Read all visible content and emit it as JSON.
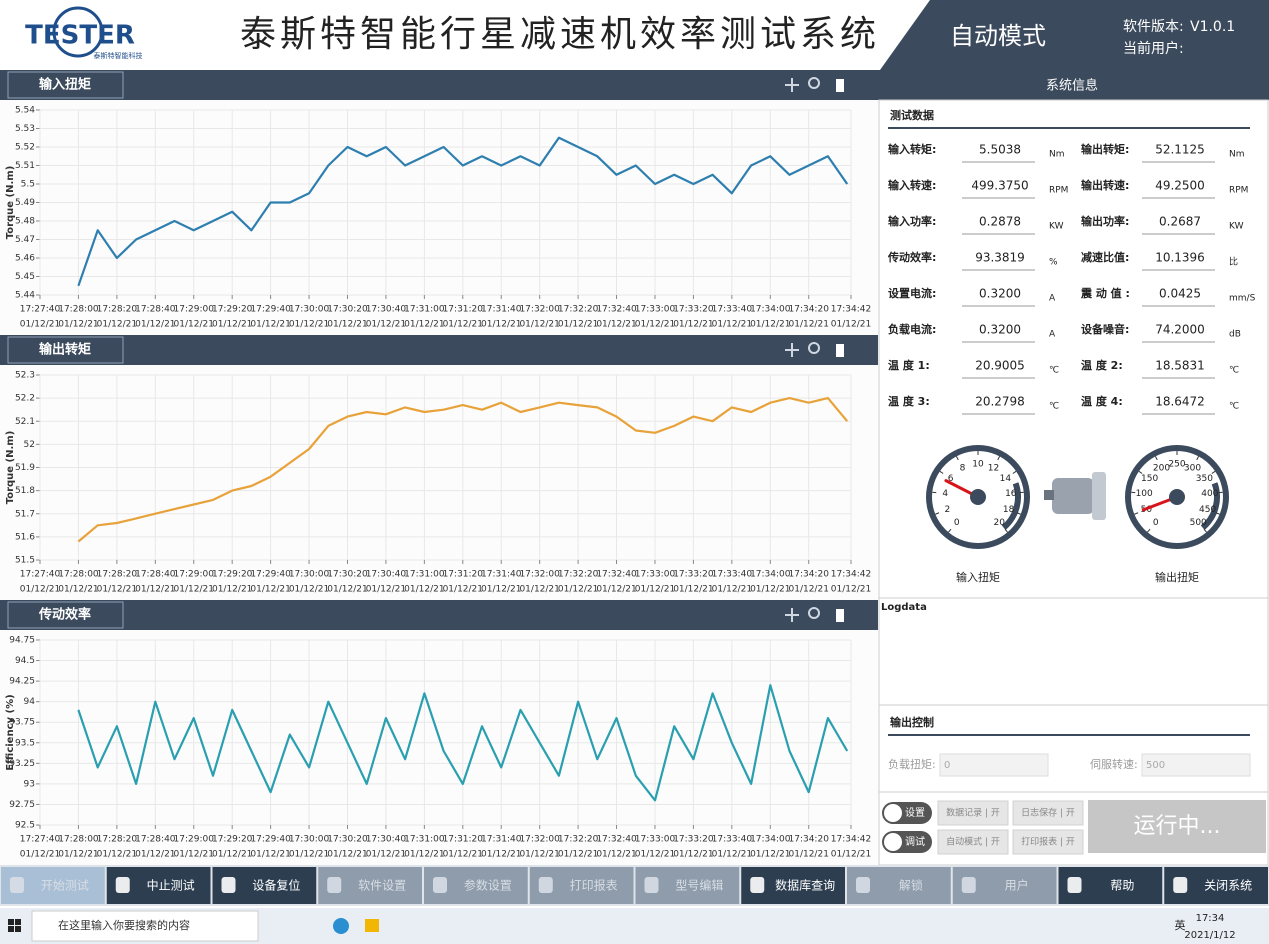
{
  "header": {
    "logo": "TESTER",
    "logo_sub": "泰斯特智能科技",
    "title": "泰斯特智能行星减速机效率测试系统",
    "mode": "自动模式",
    "version_label": "软件版本:",
    "version": "V1.0.1",
    "user_label": "当前用户:"
  },
  "chart_data": [
    {
      "type": "line",
      "title": "输入扭矩",
      "ylabel": "Torque (N.m)",
      "color": "#2e7fb0",
      "grid": true,
      "x": [
        "17:28:00",
        "17:28:10",
        "17:28:20",
        "17:28:30",
        "17:28:40",
        "17:28:50",
        "17:29:00",
        "17:29:10",
        "17:29:20",
        "17:29:30",
        "17:29:40",
        "17:29:50",
        "17:30:00",
        "17:30:10",
        "17:30:20",
        "17:30:30",
        "17:30:40",
        "17:30:50",
        "17:31:00",
        "17:31:10",
        "17:31:20",
        "17:31:30",
        "17:31:40",
        "17:31:50",
        "17:32:00",
        "17:32:10",
        "17:32:20",
        "17:32:30",
        "17:32:40",
        "17:32:50",
        "17:33:00",
        "17:33:10",
        "17:33:20",
        "17:33:30",
        "17:33:40",
        "17:33:50",
        "17:34:00",
        "17:34:10",
        "17:34:20",
        "17:34:30",
        "17:34:40"
      ],
      "values": [
        5.445,
        5.475,
        5.46,
        5.47,
        5.475,
        5.48,
        5.475,
        5.48,
        5.485,
        5.475,
        5.49,
        5.49,
        5.495,
        5.51,
        5.52,
        5.515,
        5.52,
        5.51,
        5.515,
        5.52,
        5.51,
        5.515,
        5.51,
        5.515,
        5.51,
        5.525,
        5.52,
        5.515,
        5.505,
        5.51,
        5.5,
        5.505,
        5.5,
        5.505,
        5.495,
        5.51,
        5.515,
        5.505,
        5.51,
        5.515,
        5.5
      ],
      "xlim": [
        "17:27:40",
        "17:34:42"
      ],
      "xticks": [
        "17:27:40",
        "17:28:00",
        "17:28:20",
        "17:28:40",
        "17:29:00",
        "17:29:20",
        "17:29:40",
        "17:30:00",
        "17:30:20",
        "17:30:40",
        "17:31:00",
        "17:31:20",
        "17:31:40",
        "17:32:00",
        "17:32:20",
        "17:32:40",
        "17:33:00",
        "17:33:20",
        "17:33:40",
        "17:34:00",
        "17:34:20",
        "17:34:42"
      ],
      "x_date": "01/12/21",
      "ylim": [
        5.44,
        5.54
      ],
      "yticks": [
        5.44,
        5.45,
        5.46,
        5.47,
        5.48,
        5.49,
        5.5,
        5.51,
        5.52,
        5.53,
        5.54
      ]
    },
    {
      "type": "line",
      "title": "输出转矩",
      "ylabel": "Torque (N.m)",
      "color": "#e8a23a",
      "grid": true,
      "x": [
        "17:28:00",
        "17:28:10",
        "17:28:20",
        "17:28:30",
        "17:28:40",
        "17:28:50",
        "17:29:00",
        "17:29:10",
        "17:29:20",
        "17:29:30",
        "17:29:40",
        "17:29:50",
        "17:30:00",
        "17:30:10",
        "17:30:20",
        "17:30:30",
        "17:30:40",
        "17:30:50",
        "17:31:00",
        "17:31:10",
        "17:31:20",
        "17:31:30",
        "17:31:40",
        "17:31:50",
        "17:32:00",
        "17:32:10",
        "17:32:20",
        "17:32:30",
        "17:32:40",
        "17:32:50",
        "17:33:00",
        "17:33:10",
        "17:33:20",
        "17:33:30",
        "17:33:40",
        "17:33:50",
        "17:34:00",
        "17:34:10",
        "17:34:20",
        "17:34:30",
        "17:34:40"
      ],
      "values": [
        51.58,
        51.65,
        51.66,
        51.68,
        51.7,
        51.72,
        51.74,
        51.76,
        51.8,
        51.82,
        51.86,
        51.92,
        51.98,
        52.08,
        52.12,
        52.14,
        52.13,
        52.16,
        52.14,
        52.15,
        52.17,
        52.15,
        52.18,
        52.14,
        52.16,
        52.18,
        52.17,
        52.16,
        52.12,
        52.06,
        52.05,
        52.08,
        52.12,
        52.1,
        52.16,
        52.14,
        52.18,
        52.2,
        52.18,
        52.2,
        52.1
      ],
      "xlim": [
        "17:27:40",
        "17:34:42"
      ],
      "xticks": [
        "17:27:40",
        "17:28:00",
        "17:28:20",
        "17:28:40",
        "17:29:00",
        "17:29:20",
        "17:29:40",
        "17:30:00",
        "17:30:20",
        "17:30:40",
        "17:31:00",
        "17:31:20",
        "17:31:40",
        "17:32:00",
        "17:32:20",
        "17:32:40",
        "17:33:00",
        "17:33:20",
        "17:33:40",
        "17:34:00",
        "17:34:20",
        "17:34:42"
      ],
      "x_date": "01/12/21",
      "ylim": [
        51.5,
        52.3
      ],
      "yticks": [
        51.5,
        51.6,
        51.7,
        51.8,
        51.9,
        52,
        52.1,
        52.2,
        52.3
      ]
    },
    {
      "type": "line",
      "title": "传动效率",
      "ylabel": "Efficiency (%)",
      "color": "#2a9fb0",
      "grid": true,
      "x": [
        "17:28:00",
        "17:28:10",
        "17:28:20",
        "17:28:30",
        "17:28:40",
        "17:28:50",
        "17:29:00",
        "17:29:10",
        "17:29:20",
        "17:29:30",
        "17:29:40",
        "17:29:50",
        "17:30:00",
        "17:30:10",
        "17:30:20",
        "17:30:30",
        "17:30:40",
        "17:30:50",
        "17:31:00",
        "17:31:10",
        "17:31:20",
        "17:31:30",
        "17:31:40",
        "17:31:50",
        "17:32:00",
        "17:32:10",
        "17:32:20",
        "17:32:30",
        "17:32:40",
        "17:32:50",
        "17:33:00",
        "17:33:10",
        "17:33:20",
        "17:33:30",
        "17:33:40",
        "17:33:50",
        "17:34:00",
        "17:34:10",
        "17:34:20",
        "17:34:30",
        "17:34:40"
      ],
      "values": [
        93.9,
        93.2,
        93.7,
        93.0,
        94.0,
        93.3,
        93.8,
        93.1,
        93.9,
        93.4,
        92.9,
        93.6,
        93.2,
        94.0,
        93.5,
        93.0,
        93.8,
        93.3,
        94.1,
        93.4,
        93.0,
        93.7,
        93.2,
        93.9,
        93.5,
        93.1,
        94.0,
        93.3,
        93.8,
        93.1,
        92.8,
        93.7,
        93.3,
        94.1,
        93.5,
        93.0,
        94.2,
        93.4,
        92.9,
        93.8,
        93.4
      ],
      "xlim": [
        "17:27:40",
        "17:34:42"
      ],
      "xticks": [
        "17:27:40",
        "17:28:00",
        "17:28:20",
        "17:28:40",
        "17:29:00",
        "17:29:20",
        "17:29:40",
        "17:30:00",
        "17:30:20",
        "17:30:40",
        "17:31:00",
        "17:31:20",
        "17:31:40",
        "17:32:00",
        "17:32:20",
        "17:32:40",
        "17:33:00",
        "17:33:20",
        "17:33:40",
        "17:34:00",
        "17:34:20",
        "17:34:42"
      ],
      "x_date": "01/12/21",
      "ylim": [
        92.5,
        94.75
      ],
      "yticks": [
        92.5,
        92.75,
        93,
        93.25,
        93.5,
        93.75,
        94,
        94.25,
        94.5,
        94.75
      ]
    }
  ],
  "system_info": {
    "title": "系统信息",
    "section": "测试数据",
    "rows": [
      [
        {
          "label": "输入转矩:",
          "value": "5.5038",
          "unit": "Nm"
        },
        {
          "label": "输出转矩:",
          "value": "52.1125",
          "unit": "Nm"
        }
      ],
      [
        {
          "label": "输入转速:",
          "value": "499.3750",
          "unit": "RPM"
        },
        {
          "label": "输出转速:",
          "value": "49.2500",
          "unit": "RPM"
        }
      ],
      [
        {
          "label": "输入功率:",
          "value": "0.2878",
          "unit": "KW"
        },
        {
          "label": "输出功率:",
          "value": "0.2687",
          "unit": "KW"
        }
      ],
      [
        {
          "label": "传动效率:",
          "value": "93.3819",
          "unit": "%"
        },
        {
          "label": "减速比值:",
          "value": "10.1396",
          "unit": "比"
        }
      ],
      [
        {
          "label": "设置电流:",
          "value": "0.3200",
          "unit": "A"
        },
        {
          "label": "震 动 值 :",
          "value": "0.0425",
          "unit": "mm/S"
        }
      ],
      [
        {
          "label": "负载电流:",
          "value": "0.3200",
          "unit": "A"
        },
        {
          "label": "设备噪音:",
          "value": "74.2000",
          "unit": "dB"
        }
      ],
      [
        {
          "label": "温 度 1:",
          "value": "20.9005",
          "unit": "℃"
        },
        {
          "label": "温 度 2:",
          "value": "18.5831",
          "unit": "℃"
        }
      ],
      [
        {
          "label": "温 度 3:",
          "value": "20.2798",
          "unit": "℃"
        },
        {
          "label": "温 度 4:",
          "value": "18.6472",
          "unit": "℃"
        }
      ]
    ]
  },
  "gauges": [
    {
      "label": "输入扭矩",
      "lim": [
        0,
        20
      ],
      "ticks": [
        0,
        2,
        4,
        6,
        8,
        10,
        12,
        14,
        16,
        18,
        20
      ],
      "value": 5.5038
    },
    {
      "label": "输出扭矩",
      "lim": [
        0,
        500
      ],
      "ticks": [
        0,
        50,
        100,
        150,
        200,
        250,
        300,
        350,
        400,
        450,
        500
      ],
      "value": 52.1125
    }
  ],
  "log": {
    "title": "Logdata"
  },
  "output_control": {
    "title": "输出控制",
    "load_label": "负载扭矩:",
    "load_value": "0",
    "speed_label": "伺服转速:",
    "speed_value": "500"
  },
  "controls": {
    "switches": [
      "设置",
      "调试"
    ],
    "buttons": [
      "数据记录 | 开",
      "日志保存 | 开",
      "自动模式 | 开",
      "打印报表 | 开"
    ],
    "status": "运行中..."
  },
  "toolbar": [
    {
      "label": "开始测试",
      "enabled": false
    },
    {
      "label": "中止测试",
      "enabled": true
    },
    {
      "label": "设备复位",
      "enabled": true
    },
    {
      "label": "软件设置",
      "enabled": false
    },
    {
      "label": "参数设置",
      "enabled": false
    },
    {
      "label": "打印报表",
      "enabled": false
    },
    {
      "label": "型号编辑",
      "enabled": false
    },
    {
      "label": "数据库查询",
      "enabled": true
    },
    {
      "label": "解锁",
      "enabled": false
    },
    {
      "label": "用户",
      "enabled": false
    },
    {
      "label": "帮助",
      "enabled": true
    },
    {
      "label": "关闭系统",
      "enabled": true
    }
  ],
  "taskbar": {
    "search": "在这里输入你要搜索的内容",
    "ime": "英",
    "time": "17:34",
    "date": "2021/1/12"
  }
}
